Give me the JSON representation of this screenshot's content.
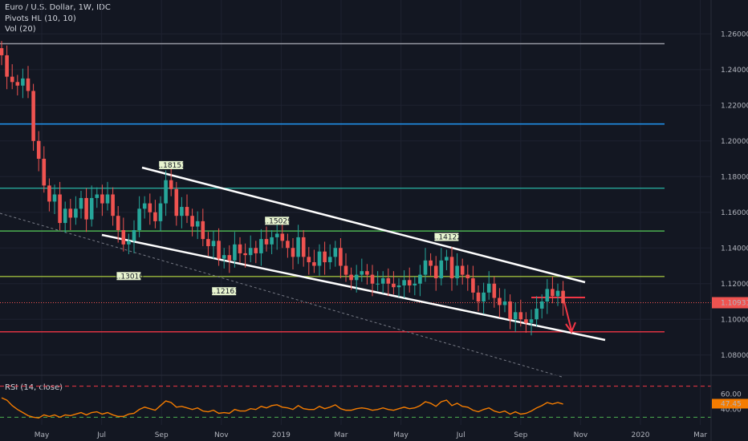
{
  "header": {
    "title": "Euro / U.S. Dollar, 1W, IDC",
    "indicator_pivots": "Pivots HL (10, 10)",
    "indicator_vol": "Vol (20)",
    "rsi_label": "RSI (14, close)"
  },
  "colors": {
    "background": "#131722",
    "up": "#26a69a",
    "down": "#ef5350",
    "grid": "#1e2230",
    "rsi_line": "#f57c00"
  },
  "chart_data": {
    "type": "candlestick",
    "ylim": [
      1.07,
      1.27
    ],
    "y_ticks": [
      "1.26000",
      "1.24000",
      "1.22000",
      "1.20000",
      "1.18000",
      "1.16000",
      "1.14000",
      "1.12000",
      "1.10000",
      "1.08000"
    ],
    "x_ticks": [
      "May",
      "Jul",
      "Sep",
      "Nov",
      "2019",
      "Mar",
      "May",
      "Jul",
      "Sep",
      "Nov",
      "2020",
      "Mar"
    ],
    "last_price": "1.10931",
    "horizontal_levels": [
      {
        "price": 1.2545,
        "color": "#9598a1"
      },
      {
        "price": 1.2095,
        "color": "#2196f3"
      },
      {
        "price": 1.1735,
        "color": "#26a69a"
      },
      {
        "price": 1.1495,
        "color": "#4caf50"
      },
      {
        "price": 1.124,
        "color": "#9cba3d"
      },
      {
        "price": 1.093,
        "color": "#f23645"
      }
    ],
    "pivots": [
      {
        "label": "1.18153",
        "type": "high",
        "week": 32,
        "price": 1.1815
      },
      {
        "label": "1.15029",
        "type": "high",
        "week": 52,
        "price": 1.1503
      },
      {
        "label": "1.14122",
        "type": "high",
        "week": 84,
        "price": 1.1412
      },
      {
        "label": "1.13010",
        "type": "low",
        "week": 24,
        "price": 1.1301
      },
      {
        "label": "1.12163",
        "type": "low",
        "week": 42,
        "price": 1.1216
      }
    ],
    "candles_close": [
      1.248,
      1.236,
      1.233,
      1.231,
      1.235,
      1.228,
      1.2,
      1.19,
      1.175,
      1.166,
      1.17,
      1.154,
      1.162,
      1.157,
      1.162,
      1.168,
      1.156,
      1.168,
      1.17,
      1.165,
      1.17,
      1.158,
      1.15,
      1.142,
      1.144,
      1.15,
      1.162,
      1.165,
      1.16,
      1.155,
      1.165,
      1.178,
      1.173,
      1.158,
      1.163,
      1.158,
      1.152,
      1.155,
      1.145,
      1.141,
      1.144,
      1.134,
      1.136,
      1.133,
      1.142,
      1.137,
      1.136,
      1.14,
      1.137,
      1.145,
      1.142,
      1.146,
      1.148,
      1.144,
      1.14,
      1.135,
      1.146,
      1.135,
      1.132,
      1.13,
      1.138,
      1.132,
      1.135,
      1.14,
      1.13,
      1.125,
      1.122,
      1.125,
      1.127,
      1.125,
      1.12,
      1.12,
      1.123,
      1.12,
      1.118,
      1.119,
      1.122,
      1.119,
      1.12,
      1.125,
      1.133,
      1.13,
      1.123,
      1.133,
      1.135,
      1.123,
      1.13,
      1.125,
      1.123,
      1.115,
      1.11,
      1.115,
      1.12,
      1.112,
      1.108,
      1.11,
      1.1,
      1.104,
      1.1,
      1.098,
      1.1,
      1.106,
      1.11,
      1.117,
      1.113,
      1.116,
      1.109
    ],
    "rsi": {
      "ylim": [
        20,
        80
      ],
      "y_ticks": [
        "60.00",
        "40.00"
      ],
      "last_value": "47.45",
      "upper_band": 70,
      "lower_band": 30,
      "values": [
        55,
        52,
        45,
        40,
        36,
        32,
        30,
        29,
        33,
        31,
        33,
        30,
        33,
        32,
        34,
        36,
        33,
        36,
        37,
        34,
        36,
        33,
        31,
        31,
        34,
        35,
        40,
        43,
        41,
        39,
        45,
        51,
        49,
        43,
        44,
        42,
        40,
        42,
        38,
        37,
        39,
        35,
        36,
        35,
        40,
        38,
        38,
        41,
        40,
        44,
        42,
        45,
        46,
        43,
        42,
        40,
        45,
        41,
        40,
        40,
        44,
        41,
        43,
        46,
        41,
        39,
        39,
        41,
        42,
        41,
        39,
        40,
        42,
        40,
        39,
        41,
        43,
        41,
        42,
        45,
        50,
        48,
        44,
        50,
        52,
        45,
        48,
        44,
        43,
        39,
        37,
        40,
        42,
        38,
        36,
        38,
        34,
        37,
        34,
        35,
        38,
        42,
        45,
        49,
        47,
        49,
        47
      ]
    }
  }
}
